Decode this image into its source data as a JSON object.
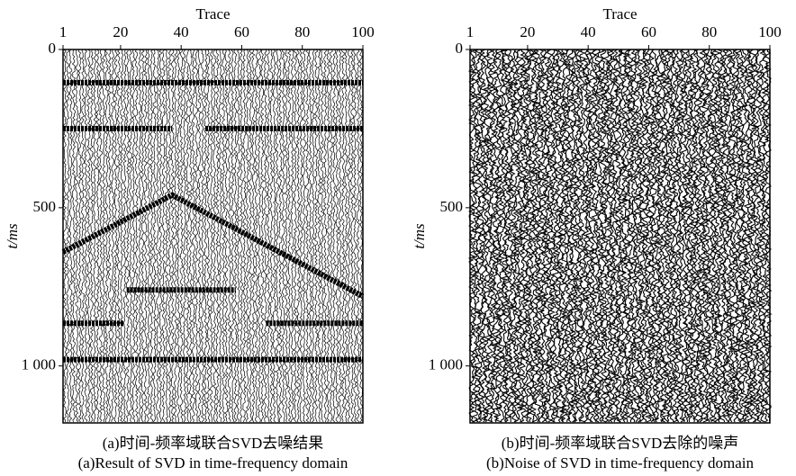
{
  "chart_data": [
    {
      "type": "seismic",
      "xlabel": "Trace",
      "ylabel": "t/ms",
      "caption_cn": "(a)时间-频率域联合SVD去噪结果",
      "caption_en": "(a)Result of  SVD in time-frequency domain",
      "xlim": [
        1,
        100
      ],
      "xticks": [
        1,
        20,
        40,
        60,
        80,
        100
      ],
      "ylim": [
        0,
        1180
      ],
      "yticks": [
        0,
        500,
        {
          "value": 1000,
          "label": "1 000"
        }
      ],
      "series": [
        {
          "color": "#000000",
          "x": [
            1,
            100
          ],
          "values": [
            105,
            105
          ]
        },
        {
          "color": "#000000",
          "x": [
            1,
            37
          ],
          "values": [
            250,
            250
          ]
        },
        {
          "color": "#000000",
          "x": [
            48,
            100
          ],
          "values": [
            250,
            250
          ]
        },
        {
          "color": "#000000",
          "x": [
            1,
            37,
            100
          ],
          "values": [
            640,
            460,
            780
          ]
        },
        {
          "color": "#000000",
          "x": [
            22,
            58
          ],
          "values": [
            760,
            760
          ]
        },
        {
          "color": "#000000",
          "x": [
            1,
            21
          ],
          "values": [
            865,
            865
          ]
        },
        {
          "color": "#000000",
          "x": [
            68,
            100
          ],
          "values": [
            865,
            865
          ]
        },
        {
          "color": "#000000",
          "x": [
            1,
            100
          ],
          "values": [
            980,
            980
          ]
        }
      ]
    },
    {
      "type": "seismic",
      "xlabel": "Trace",
      "ylabel": "t/ms",
      "caption_cn": "(b)时间-频率域联合SVD去除的噪声",
      "caption_en": "(b)Noise of  SVD in time-frequency domain",
      "xlim": [
        1,
        100
      ],
      "xticks": [
        1,
        20,
        40,
        60,
        80,
        100
      ],
      "ylim": [
        0,
        1180
      ],
      "yticks": [
        0,
        500,
        {
          "value": 1000,
          "label": "1 000"
        }
      ]
    }
  ]
}
